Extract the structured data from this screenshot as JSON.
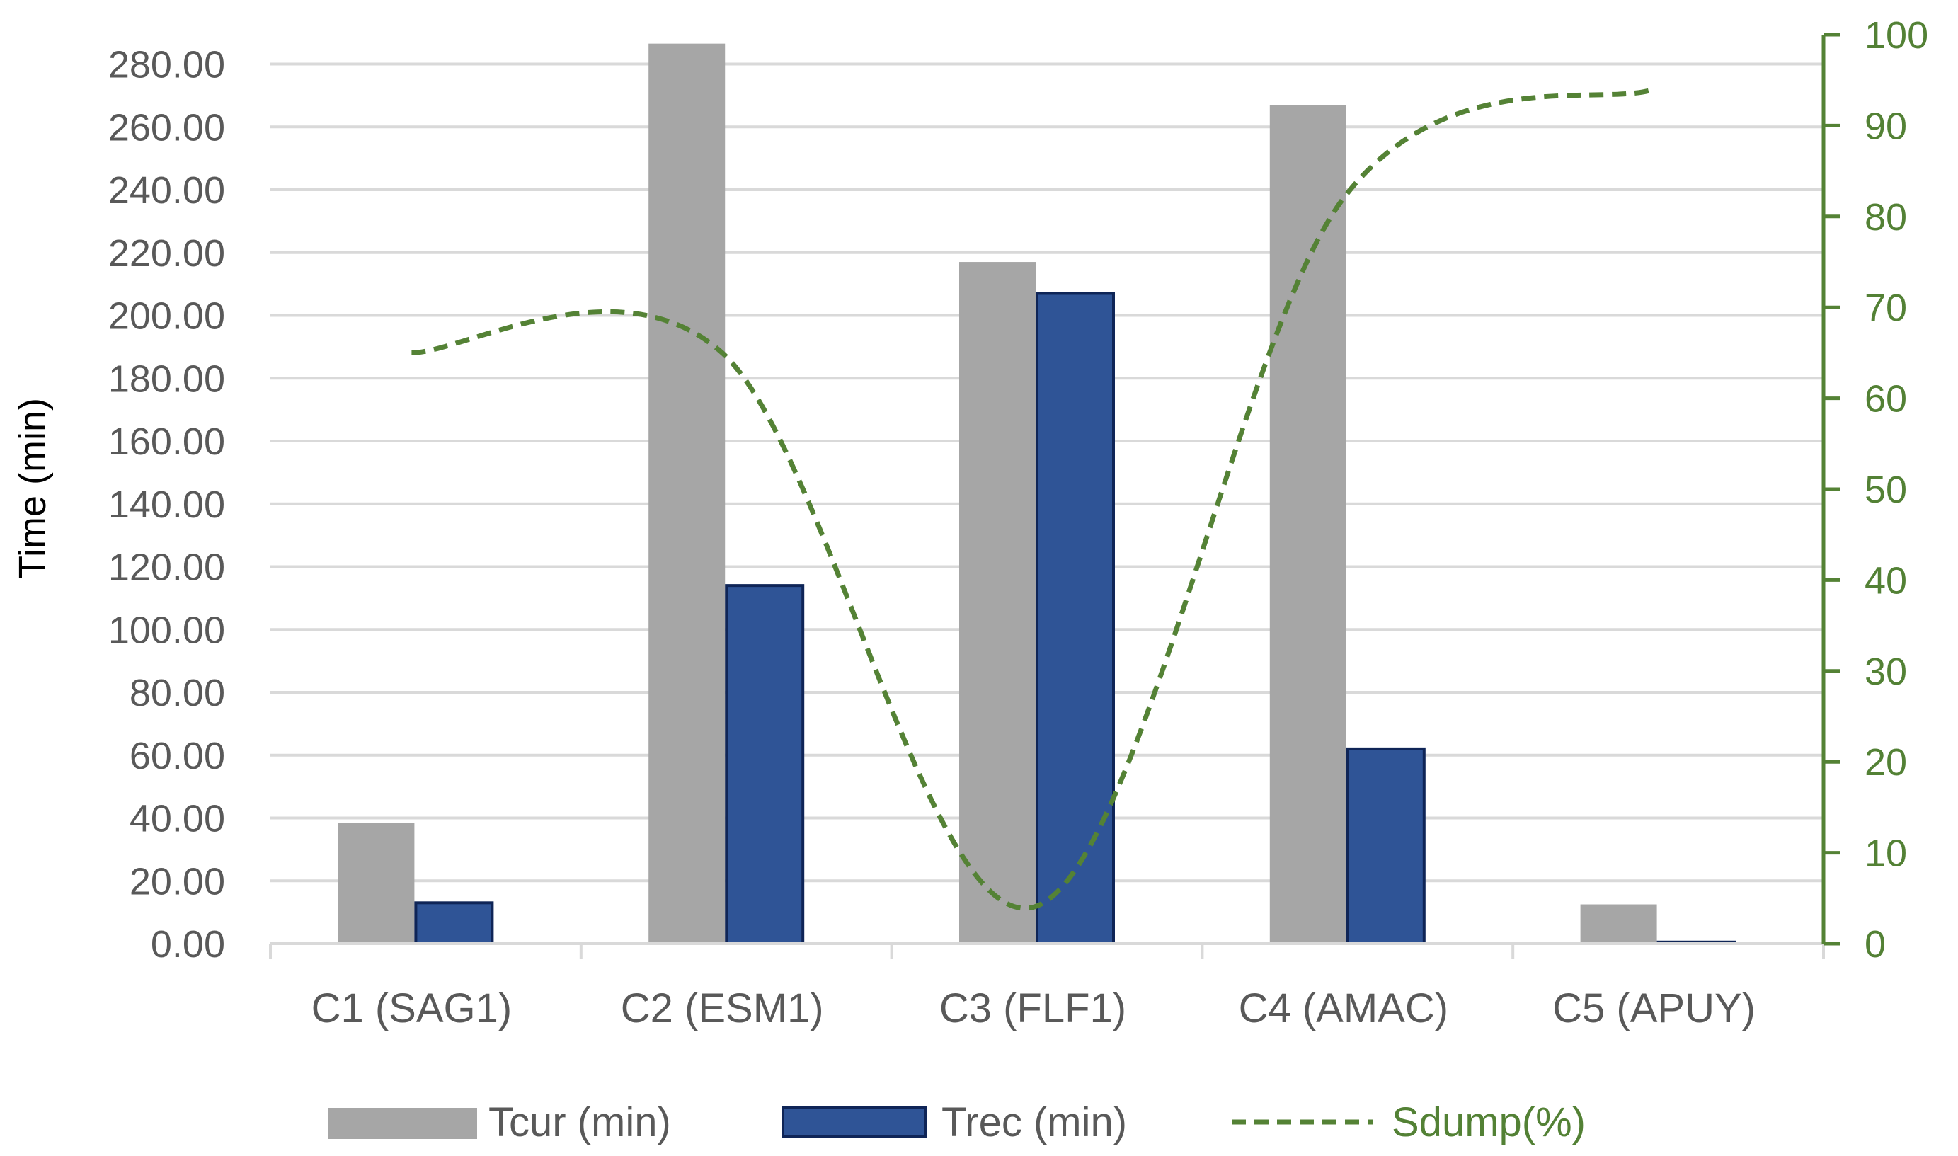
{
  "chart_data": {
    "type": "bar",
    "categories": [
      "C1 (SAG1)",
      "C2 (ESM1)",
      "C3 (FLF1)",
      "C4 (AMAC)",
      "C5 (APUY)"
    ],
    "series": [
      {
        "name": "Tcur (min)",
        "type": "bar",
        "axis": "left",
        "color": "#a6a6a6",
        "values": [
          38.5,
          286.5,
          217.0,
          267.0,
          12.5
        ]
      },
      {
        "name": "Trec (min)",
        "type": "bar",
        "axis": "left",
        "color": "#2f5496",
        "values": [
          13.0,
          114.0,
          207.0,
          62.0,
          0.5
        ]
      },
      {
        "name": "Sdump(%)",
        "type": "line",
        "axis": "right",
        "style": "dashed",
        "color": "#548235",
        "values": [
          65,
          65,
          4,
          82,
          94
        ]
      }
    ],
    "ylabel": "Time (min)",
    "ylim": [
      0,
      286
    ],
    "y_ticks": [
      "0.00",
      "20.00",
      "40.00",
      "60.00",
      "80.00",
      "100.00",
      "120.00",
      "140.00",
      "160.00",
      "180.00",
      "200.00",
      "220.00",
      "240.00",
      "260.00",
      "280.00"
    ],
    "y2lim": [
      0,
      100
    ],
    "y2_ticks": [
      "0",
      "10",
      "20",
      "30",
      "40",
      "50",
      "60",
      "70",
      "80",
      "90",
      "100"
    ],
    "grid": true,
    "legend": "bottom"
  }
}
